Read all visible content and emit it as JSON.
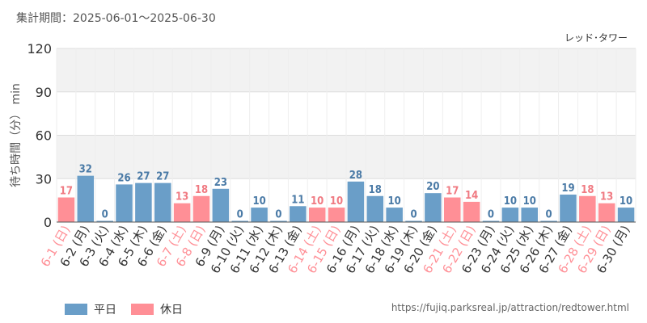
{
  "header": {
    "period": "集計期間：2025-06-01～2025-06-30",
    "attraction": "レッド･タワー"
  },
  "footer": {
    "url": "https://fujiq.parksreal.jp/attraction/redtower.html"
  },
  "colors": {
    "weekday": "#6a9ec8",
    "holiday": "#ff8f96",
    "weekday_text": "#4a7aa6",
    "holiday_text": "#f07a82"
  },
  "chart_data": {
    "type": "bar",
    "ylabel": "待ち時間（分） min",
    "ylim": [
      0,
      120
    ],
    "yticks": [
      0,
      30,
      60,
      90,
      120
    ],
    "grid": true,
    "legend_position": "bottom-left",
    "categories": [
      "6-1 (日)",
      "6-2 (月)",
      "6-3 (火)",
      "6-4 (水)",
      "6-5 (木)",
      "6-6 (金)",
      "6-7 (土)",
      "6-8 (日)",
      "6-9 (月)",
      "6-10 (火)",
      "6-11 (水)",
      "6-12 (木)",
      "6-13 (金)",
      "6-14 (土)",
      "6-15 (日)",
      "6-16 (月)",
      "6-17 (火)",
      "6-18 (水)",
      "6-19 (木)",
      "6-20 (金)",
      "6-21 (土)",
      "6-22 (日)",
      "6-23 (月)",
      "6-24 (火)",
      "6-25 (水)",
      "6-26 (木)",
      "6-27 (金)",
      "6-28 (土)",
      "6-29 (日)",
      "6-30 (月)"
    ],
    "values": [
      17,
      32,
      0,
      26,
      27,
      27,
      13,
      18,
      23,
      0,
      10,
      0,
      11,
      10,
      10,
      28,
      18,
      10,
      0,
      20,
      17,
      14,
      0,
      10,
      10,
      0,
      19,
      18,
      13,
      10
    ],
    "day_types": [
      "休日",
      "平日",
      "平日",
      "平日",
      "平日",
      "平日",
      "休日",
      "休日",
      "平日",
      "平日",
      "平日",
      "平日",
      "平日",
      "休日",
      "休日",
      "平日",
      "平日",
      "平日",
      "平日",
      "平日",
      "休日",
      "休日",
      "平日",
      "平日",
      "平日",
      "平日",
      "平日",
      "休日",
      "休日",
      "平日"
    ],
    "series": [
      {
        "name": "平日",
        "color": "#6a9ec8"
      },
      {
        "name": "休日",
        "color": "#ff8f96"
      }
    ]
  }
}
